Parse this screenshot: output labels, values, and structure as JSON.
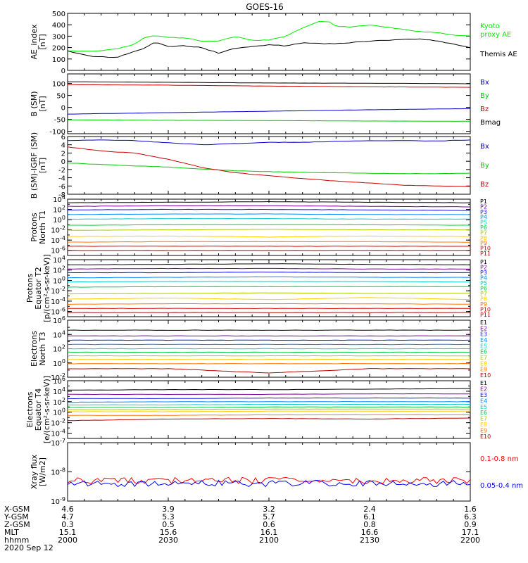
{
  "title": "GOES-16",
  "footer": {
    "rows": [
      {
        "label": "X-GSM",
        "values": [
          "4.6",
          "3.9",
          "3.2",
          "2.4",
          "1.6"
        ]
      },
      {
        "label": "Y-GSM",
        "values": [
          "4.7",
          "5.3",
          "5.7",
          "6.1",
          "6.3"
        ]
      },
      {
        "label": "Z-GSM",
        "values": [
          "0.3",
          "0.5",
          "0.6",
          "0.8",
          "0.9"
        ]
      },
      {
        "label": "MLT",
        "values": [
          "15.1",
          "15.6",
          "16.1",
          "16.6",
          "17.1"
        ]
      },
      {
        "label": "hhmm",
        "values": [
          "2000",
          "2030",
          "2100",
          "2130",
          "2200"
        ]
      }
    ],
    "date": "2020 Sep 12"
  },
  "chart_data": [
    {
      "id": "ae",
      "type": "line",
      "ylabel": [
        "AE_index",
        "[nT]"
      ],
      "ylim": [
        0,
        500
      ],
      "yticks": [
        "0",
        "100",
        "200",
        "300",
        "400",
        "500"
      ],
      "x": [
        0,
        8,
        15,
        20,
        23,
        26,
        30,
        35,
        40,
        45,
        50,
        55,
        60,
        65,
        70,
        75,
        78,
        80,
        85,
        90,
        95,
        100,
        105,
        110,
        115,
        120
      ],
      "series": [
        {
          "name": "Kyoto\nproxy AE",
          "color": "#00ee00",
          "values": [
            170,
            170,
            190,
            230,
            290,
            305,
            290,
            285,
            255,
            260,
            295,
            265,
            265,
            300,
            370,
            430,
            425,
            385,
            380,
            400,
            380,
            360,
            340,
            330,
            310,
            300
          ]
        },
        {
          "name": "Themis AE",
          "color": "#000000",
          "values": [
            170,
            120,
            115,
            170,
            195,
            250,
            210,
            215,
            200,
            150,
            195,
            210,
            225,
            215,
            240,
            235,
            235,
            235,
            245,
            255,
            265,
            270,
            275,
            260,
            230,
            200
          ]
        }
      ]
    },
    {
      "id": "bsm",
      "type": "line",
      "ylabel": [
        "B (SM)",
        "[nT]"
      ],
      "ylim": [
        -110,
        140
      ],
      "yticks": [
        "-100",
        "-50",
        "0",
        "50",
        "100"
      ],
      "x": [
        0,
        30,
        60,
        90,
        120
      ],
      "series": [
        {
          "name": "Bx",
          "color": "#0000cc",
          "values": [
            -28,
            -22,
            -16,
            -10,
            -5
          ]
        },
        {
          "name": "By",
          "color": "#00cc00",
          "values": [
            -52,
            -54,
            -55,
            -57,
            -58
          ]
        },
        {
          "name": "Bz",
          "color": "#cc0000",
          "values": [
            95,
            93,
            89,
            86,
            84
          ]
        },
        {
          "name": "Bmag",
          "color": "#000000",
          "values": [
            107,
            105,
            102,
            101,
            99
          ]
        }
      ]
    },
    {
      "id": "bdelta",
      "type": "line",
      "ylabel": [
        "B (SM)-IGRF (SM)",
        "[nT]"
      ],
      "ylim": [
        -8,
        6
      ],
      "yticks": [
        "-8",
        "-6",
        "-4",
        "-2",
        "0",
        "2",
        "4",
        "6"
      ],
      "x": [
        0,
        10,
        20,
        30,
        40,
        50,
        60,
        70,
        80,
        90,
        100,
        110,
        120
      ],
      "series": [
        {
          "name": "Bx",
          "color": "#0000cc",
          "values": [
            5.0,
            5.2,
            5.0,
            4.5,
            4.0,
            4.3,
            4.6,
            4.6,
            4.8,
            5.0,
            5.0,
            4.9,
            5.2
          ]
        },
        {
          "name": "By",
          "color": "#00cc00",
          "values": [
            -0.4,
            -0.8,
            -1.1,
            -1.4,
            -1.9,
            -2.3,
            -2.5,
            -2.7,
            -2.8,
            -2.9,
            -3.0,
            -3.0,
            -2.9
          ]
        },
        {
          "name": "Bz",
          "color": "#cc0000",
          "values": [
            3.5,
            2.5,
            2.0,
            0.5,
            -1.5,
            -2.8,
            -3.5,
            -4.2,
            -4.8,
            -5.3,
            -5.8,
            -6.0,
            -6.1
          ]
        }
      ]
    },
    {
      "id": "protons_t1",
      "type": "line",
      "ylabel": [
        "Protons",
        "North T1"
      ],
      "ylog": true,
      "ylim": [
        -7,
        4
      ],
      "yticks": [
        "10^-6",
        "10^-4",
        "10^-2",
        "10^0",
        "10^2",
        "10^4"
      ],
      "series": [
        {
          "name": "P1",
          "color": "#000000",
          "values": [
            3.3,
            3.4,
            3.5,
            3.4,
            3.3
          ]
        },
        {
          "name": "P2",
          "color": "#7b0099",
          "values": [
            2.6,
            2.7,
            2.7,
            2.6,
            2.5
          ]
        },
        {
          "name": "P3",
          "color": "#1111ee",
          "values": [
            1.9,
            2.0,
            2.0,
            1.9,
            1.8
          ]
        },
        {
          "name": "P4",
          "color": "#0088ff",
          "values": [
            1.0,
            1.1,
            1.1,
            1.0,
            1.0
          ]
        },
        {
          "name": "P5",
          "color": "#00cccc",
          "values": [
            0.1,
            0.2,
            0.2,
            0.1,
            0.1
          ]
        },
        {
          "name": "P6",
          "color": "#00cc44",
          "values": [
            -1.1,
            -1.0,
            -1.0,
            -1.0,
            -1.1
          ]
        },
        {
          "name": "P7",
          "color": "#aacc00",
          "values": [
            -2.1,
            -2.0,
            -1.9,
            -2.0,
            -2.0
          ]
        },
        {
          "name": "P8",
          "color": "#ffcc00",
          "values": [
            -3.3,
            -3.2,
            -3.4,
            -3.2,
            -3.3
          ]
        },
        {
          "name": "P9",
          "color": "#ff7700",
          "values": [
            -4.4,
            -4.3,
            -4.3,
            -4.3,
            -4.4
          ]
        },
        {
          "name": "P10",
          "color": "#dd0000",
          "values": [
            -5.2,
            -5.2,
            -5.2,
            -5.2,
            -5.2
          ]
        },
        {
          "name": "P11",
          "color": "#bb0000",
          "values": [
            -6.0,
            -6.0,
            -6.0,
            -6.0,
            -6.0
          ]
        }
      ]
    },
    {
      "id": "protons_t2",
      "type": "line",
      "ylabel": [
        "Protons",
        "Equator T2",
        "[p/(cm²-s-sr-keV)]"
      ],
      "ylog": true,
      "ylim": [
        -7,
        4
      ],
      "yticks": [
        "10^-6",
        "10^-4",
        "10^-2",
        "10^0",
        "10^2",
        "10^4"
      ],
      "series": [
        {
          "name": "P1",
          "color": "#000000",
          "values": [
            3.0,
            3.1,
            3.2,
            3.1,
            3.0
          ]
        },
        {
          "name": "P2",
          "color": "#7b0099",
          "values": [
            2.2,
            2.3,
            2.3,
            2.2,
            2.2
          ]
        },
        {
          "name": "P3",
          "color": "#1111ee",
          "values": [
            1.5,
            1.5,
            1.6,
            1.5,
            1.5
          ]
        },
        {
          "name": "P4",
          "color": "#0088ff",
          "values": [
            0.5,
            0.6,
            0.7,
            0.6,
            0.6
          ]
        },
        {
          "name": "P5",
          "color": "#00cccc",
          "values": [
            -0.3,
            -0.2,
            -0.2,
            -0.2,
            -0.3
          ]
        },
        {
          "name": "P6",
          "color": "#00cc44",
          "values": [
            -1.3,
            -1.2,
            -1.2,
            -1.2,
            -1.2
          ]
        },
        {
          "name": "P7",
          "color": "#aacc00",
          "values": [
            -2.6,
            -2.5,
            -2.4,
            -2.5,
            -2.5
          ]
        },
        {
          "name": "P8",
          "color": "#ffcc00",
          "values": [
            -3.6,
            -3.4,
            -3.7,
            -3.3,
            -3.7
          ]
        },
        {
          "name": "P9",
          "color": "#ff7700",
          "values": [
            -4.6,
            -4.5,
            -4.5,
            -4.5,
            -4.6
          ]
        },
        {
          "name": "P10",
          "color": "#dd0000",
          "values": [
            -5.4,
            -5.4,
            -5.4,
            -5.4,
            -5.4
          ]
        },
        {
          "name": "P11",
          "color": "#bb0000",
          "values": [
            -6.2,
            -6.2,
            -6.2,
            -6.2,
            -6.2
          ]
        }
      ]
    },
    {
      "id": "electrons_t3",
      "type": "line",
      "ylabel": [
        "Electrons",
        "North T3"
      ],
      "ylog": true,
      "ylim": [
        -2,
        6
      ],
      "yticks": [
        "10^-2",
        "10^0",
        "10^2",
        "10^4",
        "10^6"
      ],
      "series": [
        {
          "name": "E1",
          "color": "#000000",
          "values": [
            4.6,
            4.6,
            4.6,
            4.6,
            4.6
          ]
        },
        {
          "name": "E2",
          "color": "#7b0099",
          "values": [
            3.8,
            3.8,
            3.8,
            3.8,
            3.8
          ]
        },
        {
          "name": "E3",
          "color": "#1111ee",
          "values": [
            3.2,
            3.2,
            3.2,
            3.2,
            3.2
          ]
        },
        {
          "name": "E4",
          "color": "#0088ff",
          "values": [
            2.6,
            2.6,
            2.6,
            2.6,
            2.6
          ]
        },
        {
          "name": "E5",
          "color": "#00cccc",
          "values": [
            2.0,
            2.0,
            2.0,
            2.0,
            2.0
          ]
        },
        {
          "name": "E6",
          "color": "#00cc44",
          "values": [
            1.5,
            1.5,
            1.5,
            1.5,
            1.5
          ]
        },
        {
          "name": "E7",
          "color": "#aacc00",
          "values": [
            1.0,
            1.0,
            1.0,
            1.0,
            1.0
          ]
        },
        {
          "name": "E8",
          "color": "#ffcc00",
          "values": [
            0.5,
            0.5,
            0.5,
            0.5,
            0.5
          ]
        },
        {
          "name": "E9",
          "color": "#ff7700",
          "values": [
            -0.1,
            -0.1,
            -0.1,
            -0.1,
            -0.1
          ]
        },
        {
          "name": "E10",
          "color": "#bb0000",
          "values": [
            -0.8,
            -0.8,
            -1.4,
            -0.8,
            -0.8
          ]
        }
      ]
    },
    {
      "id": "electrons_t4",
      "type": "line",
      "ylabel": [
        "Electrons",
        "Equator T4",
        "[e/(cm²-s-sr-keV)]"
      ],
      "ylog": true,
      "ylim": [
        -5,
        6
      ],
      "yticks": [
        "10^-4",
        "10^-2",
        "10^0",
        "10^2",
        "10^4",
        "10^6"
      ],
      "series": [
        {
          "name": "E1",
          "color": "#000000",
          "values": [
            4.2,
            4.3,
            4.3,
            4.4,
            4.5
          ]
        },
        {
          "name": "E2",
          "color": "#7b0099",
          "values": [
            3.4,
            3.4,
            3.4,
            3.5,
            3.5
          ]
        },
        {
          "name": "E3",
          "color": "#1111ee",
          "values": [
            2.6,
            2.6,
            2.7,
            2.7,
            2.7
          ]
        },
        {
          "name": "E4",
          "color": "#0088ff",
          "values": [
            1.9,
            2.0,
            2.0,
            2.0,
            2.0
          ]
        },
        {
          "name": "E5",
          "color": "#00cccc",
          "values": [
            1.4,
            1.4,
            1.5,
            1.5,
            1.5
          ]
        },
        {
          "name": "E6",
          "color": "#00cc44",
          "values": [
            0.9,
            0.9,
            1.0,
            1.0,
            1.0
          ]
        },
        {
          "name": "E7",
          "color": "#aacc00",
          "values": [
            0.5,
            0.5,
            0.6,
            0.6,
            0.6
          ]
        },
        {
          "name": "E8",
          "color": "#ffcc00",
          "values": [
            0.1,
            0.1,
            0.2,
            0.2,
            0.2
          ]
        },
        {
          "name": "E9",
          "color": "#ff7700",
          "values": [
            -0.6,
            -0.6,
            -0.5,
            -0.5,
            -0.5
          ]
        },
        {
          "name": "E10",
          "color": "#bb0000",
          "values": [
            -1.6,
            -1.3,
            -1.2,
            -1.3,
            -1.1
          ]
        }
      ]
    },
    {
      "id": "xray",
      "type": "line",
      "ylabel": [
        "Xray flux",
        "[W/m2]"
      ],
      "ylog": true,
      "ylim": [
        -9,
        -7
      ],
      "yticks": [
        "10^-9",
        "10^-8",
        "10^-7"
      ],
      "series": [
        {
          "name": "0.1-0.8 nm",
          "color": "#ff0000",
          "level": -8.3
        },
        {
          "name": "0.05-0.4 nm",
          "color": "#0000ff",
          "level": -8.4
        }
      ]
    }
  ]
}
